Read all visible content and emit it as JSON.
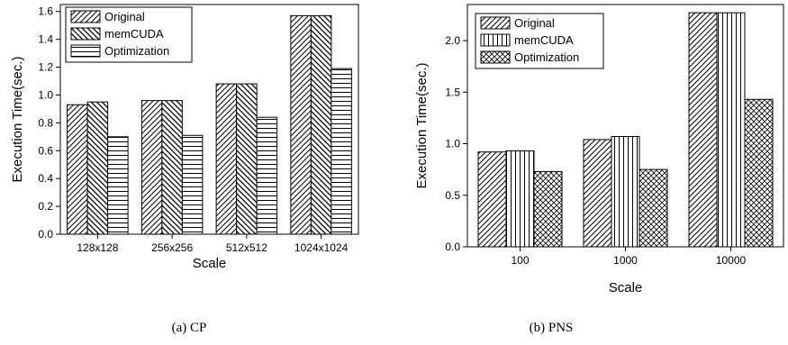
{
  "figure": {
    "captions": [
      "(a) CP",
      "(b) PNS"
    ]
  },
  "chart_data": [
    {
      "type": "bar",
      "ylabel": "Execution Time(sec.)",
      "xlabel": "Scale",
      "categories": [
        "128x128",
        "256x256",
        "512x512",
        "1024x1024"
      ],
      "ylim": [
        0,
        1.65
      ],
      "yticks": [
        "0.0",
        "0.2",
        "0.4",
        "0.6",
        "0.8",
        "1.0",
        "1.2",
        "1.4",
        "1.6"
      ],
      "legend_position": "top-left",
      "grid": false,
      "series": [
        {
          "name": "Original",
          "values": [
            0.93,
            0.96,
            1.08,
            1.57
          ],
          "pattern": "diag-right"
        },
        {
          "name": "memCUDA",
          "values": [
            0.95,
            0.96,
            1.08,
            1.57
          ],
          "pattern": "diag-left"
        },
        {
          "name": "Optimization",
          "values": [
            0.7,
            0.71,
            0.84,
            1.19
          ],
          "pattern": "horizontal"
        }
      ]
    },
    {
      "type": "bar",
      "ylabel": "Execution Time(sec.)",
      "xlabel": "Scale",
      "categories": [
        "100",
        "1000",
        "10000"
      ],
      "ylim": [
        0,
        2.35
      ],
      "yticks": [
        "0.0",
        "0.5",
        "1.0",
        "1.5",
        "2.0"
      ],
      "legend_position": "top-left",
      "grid": false,
      "series": [
        {
          "name": "Original",
          "values": [
            0.92,
            1.04,
            2.27
          ],
          "pattern": "diag-right"
        },
        {
          "name": "memCUDA",
          "values": [
            0.93,
            1.07,
            2.27
          ],
          "pattern": "vertical"
        },
        {
          "name": "Optimization",
          "values": [
            0.73,
            0.75,
            1.43
          ],
          "pattern": "crosshatch"
        }
      ]
    }
  ]
}
